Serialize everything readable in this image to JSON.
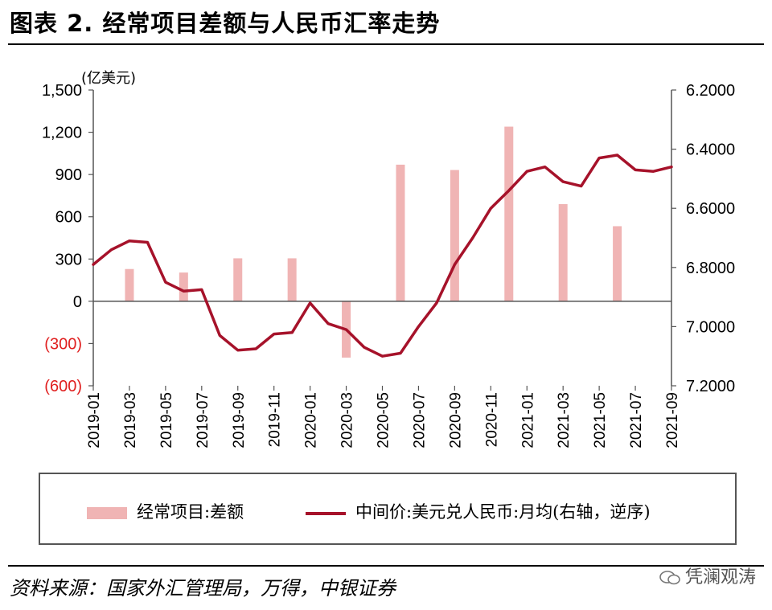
{
  "title": "图表 2. 经常项目差额与人民币汇率走势",
  "source": "资料来源：国家外汇管理局，万得，中银证券",
  "watermark": "凭澜观涛",
  "chart_data": {
    "type": "bar+line",
    "left_axis_unit": "(亿美元)",
    "left_ylim": [
      -600,
      1500
    ],
    "left_ticks": [
      {
        "value": 1500,
        "label": "1,500",
        "color": "#000000"
      },
      {
        "value": 1200,
        "label": "1,200",
        "color": "#000000"
      },
      {
        "value": 900,
        "label": "900",
        "color": "#000000"
      },
      {
        "value": 600,
        "label": "600",
        "color": "#000000"
      },
      {
        "value": 300,
        "label": "300",
        "color": "#000000"
      },
      {
        "value": 0,
        "label": "0",
        "color": "#000000"
      },
      {
        "value": -300,
        "label": "(300)",
        "color": "#e02020"
      },
      {
        "value": -600,
        "label": "(600)",
        "color": "#e02020"
      }
    ],
    "right_ylim": [
      6.2,
      7.2
    ],
    "right_inverted": true,
    "right_ticks": [
      {
        "value": 6.2,
        "label": "6.2000"
      },
      {
        "value": 6.4,
        "label": "6.4000"
      },
      {
        "value": 6.6,
        "label": "6.6000"
      },
      {
        "value": 6.8,
        "label": "6.8000"
      },
      {
        "value": 7.0,
        "label": "7.0000"
      },
      {
        "value": 7.2,
        "label": "7.2000"
      }
    ],
    "months": [
      "2019-01",
      "2019-02",
      "2019-03",
      "2019-04",
      "2019-05",
      "2019-06",
      "2019-07",
      "2019-08",
      "2019-09",
      "2019-10",
      "2019-11",
      "2019-12",
      "2020-01",
      "2020-02",
      "2020-03",
      "2020-04",
      "2020-05",
      "2020-06",
      "2020-07",
      "2020-08",
      "2020-09",
      "2020-10",
      "2020-11",
      "2020-12",
      "2021-01",
      "2021-02",
      "2021-03",
      "2021-04",
      "2021-05",
      "2021-06",
      "2021-07",
      "2021-08",
      "2021-09"
    ],
    "x_tick_labels": [
      "2019-01",
      "2019-03",
      "2019-05",
      "2019-07",
      "2019-09",
      "2019-11",
      "2020-01",
      "2020-03",
      "2020-05",
      "2020-07",
      "2020-09",
      "2020-11",
      "2021-01",
      "2021-03",
      "2021-05",
      "2021-07",
      "2021-09"
    ],
    "series": [
      {
        "name": "经常项目:差额",
        "kind": "bar",
        "axis": "left",
        "color": "#f0b4b4",
        "points": [
          {
            "month": "2019-03",
            "value": 229
          },
          {
            "month": "2019-06",
            "value": 204
          },
          {
            "month": "2019-09",
            "value": 305
          },
          {
            "month": "2019-12",
            "value": 305
          },
          {
            "month": "2020-03",
            "value": -400
          },
          {
            "month": "2020-06",
            "value": 970
          },
          {
            "month": "2020-09",
            "value": 932
          },
          {
            "month": "2020-12",
            "value": 1240
          },
          {
            "month": "2021-03",
            "value": 690
          },
          {
            "month": "2021-06",
            "value": 533
          }
        ]
      },
      {
        "name": "中间价:美元兑人民币:月均(右轴，逆序)",
        "kind": "line",
        "axis": "right",
        "color": "#a6122a",
        "values": [
          6.79,
          6.74,
          6.71,
          6.715,
          6.85,
          6.88,
          6.875,
          7.03,
          7.08,
          7.075,
          7.025,
          7.02,
          6.92,
          6.99,
          7.01,
          7.07,
          7.1,
          7.09,
          7.0,
          6.92,
          6.79,
          6.7,
          6.6,
          6.54,
          6.475,
          6.46,
          6.51,
          6.525,
          6.43,
          6.42,
          6.47,
          6.475,
          6.46
        ]
      }
    ]
  }
}
